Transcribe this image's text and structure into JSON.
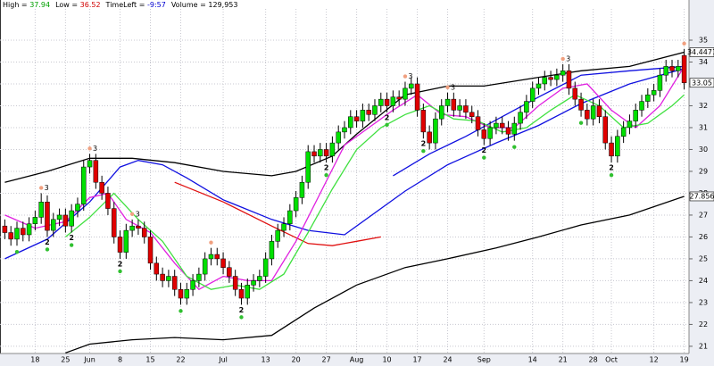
{
  "chart_data": {
    "type": "candlestick",
    "header": [
      {
        "label": "High = ",
        "value": "37.94",
        "color": "#00a000"
      },
      {
        "label": "Low = ",
        "value": "36.52",
        "color": "#d00000"
      },
      {
        "label": "TimeLeft = ",
        "value": "-9:57",
        "color": "#0000d0"
      },
      {
        "label": "Volume = ",
        "value": "129,953",
        "color": "#000000"
      }
    ],
    "categories": [
      null,
      null,
      null,
      null,
      null,
      "18",
      null,
      null,
      null,
      null,
      "25",
      null,
      null,
      null,
      "Jun",
      null,
      null,
      null,
      null,
      "8",
      null,
      null,
      null,
      null,
      "15",
      null,
      null,
      null,
      null,
      "22",
      null,
      null,
      null,
      null,
      null,
      null,
      "Jul",
      null,
      null,
      null,
      null,
      null,
      null,
      "13",
      null,
      null,
      null,
      null,
      "20",
      null,
      null,
      null,
      null,
      "27",
      null,
      null,
      null,
      null,
      "Aug",
      null,
      null,
      null,
      null,
      "10",
      null,
      null,
      null,
      null,
      "17",
      null,
      null,
      null,
      null,
      "24",
      null,
      null,
      null,
      null,
      null,
      "Sep",
      null,
      null,
      null,
      null,
      null,
      null,
      null,
      "14",
      null,
      null,
      null,
      null,
      "21",
      null,
      null,
      null,
      null,
      "28",
      null,
      null,
      "Oct",
      null,
      null,
      null,
      null,
      null,
      null,
      "12",
      null,
      null,
      null,
      null,
      "19"
    ],
    "open": [
      26.5,
      26.2,
      25.9,
      26.4,
      26.1,
      26.6,
      26.9,
      27.6,
      26.3,
      26.8,
      27.0,
      26.5,
      27.2,
      27.5,
      29.2,
      29.5,
      28.5,
      28.0,
      27.3,
      26.0,
      25.3,
      26.3,
      26.5,
      26.4,
      26.0,
      24.8,
      24.3,
      24.0,
      24.2,
      23.6,
      23.2,
      23.6,
      24.0,
      24.3,
      25.0,
      25.2,
      25.0,
      24.6,
      24.2,
      23.6,
      23.2,
      23.8,
      24.0,
      24.2,
      25.0,
      25.8,
      26.3,
      26.6,
      27.2,
      27.8,
      28.5,
      29.9,
      29.7,
      30.0,
      29.7,
      30.3,
      30.8,
      31.0,
      31.5,
      31.3,
      31.8,
      31.6,
      32.0,
      32.3,
      32.0,
      32.4,
      32.3,
      32.8,
      33.0,
      31.8,
      30.8,
      30.3,
      31.4,
      32.0,
      32.3,
      31.8,
      32.0,
      31.7,
      31.5,
      30.9,
      30.5,
      31.0,
      31.2,
      31.0,
      30.7,
      31.2,
      31.7,
      32.2,
      32.8,
      33.0,
      33.3,
      33.2,
      33.4,
      33.6,
      32.8,
      32.3,
      31.8,
      31.4,
      32.0,
      31.5,
      30.3,
      29.7,
      30.6,
      31.0,
      31.3,
      31.8,
      32.2,
      32.5,
      32.7,
      33.4,
      33.8,
      33.6,
      34.3
    ],
    "high": [
      26.8,
      26.5,
      26.7,
      26.7,
      26.9,
      27.2,
      28.0,
      27.9,
      27.1,
      27.3,
      27.3,
      27.5,
      27.8,
      29.5,
      29.8,
      29.8,
      28.8,
      28.3,
      27.6,
      26.3,
      26.6,
      26.8,
      26.8,
      26.7,
      26.3,
      25.1,
      24.6,
      24.5,
      24.5,
      23.9,
      23.9,
      24.3,
      24.6,
      25.3,
      25.5,
      25.5,
      25.3,
      24.9,
      24.5,
      23.9,
      24.1,
      24.3,
      24.5,
      25.3,
      26.1,
      26.6,
      26.9,
      27.5,
      28.1,
      28.8,
      30.2,
      30.2,
      30.3,
      30.3,
      30.6,
      31.1,
      31.3,
      31.8,
      31.8,
      32.1,
      32.1,
      32.3,
      32.6,
      32.6,
      32.7,
      32.7,
      33.1,
      33.3,
      33.3,
      32.1,
      31.1,
      31.7,
      32.3,
      32.6,
      32.6,
      32.3,
      32.3,
      32.0,
      31.8,
      31.2,
      31.3,
      31.5,
      31.5,
      31.3,
      31.5,
      32.0,
      32.5,
      33.1,
      33.3,
      33.6,
      33.6,
      33.7,
      33.9,
      33.9,
      33.1,
      32.6,
      32.1,
      32.3,
      32.3,
      31.8,
      30.6,
      30.9,
      31.3,
      31.6,
      32.1,
      32.5,
      32.8,
      33.0,
      33.7,
      34.1,
      34.1,
      34.1,
      34.6
    ],
    "low": [
      25.9,
      25.6,
      25.6,
      25.8,
      25.8,
      26.3,
      26.6,
      26.0,
      26.0,
      26.5,
      26.2,
      26.2,
      26.9,
      27.2,
      28.9,
      28.2,
      27.7,
      27.0,
      25.7,
      25.0,
      25.0,
      26.0,
      26.1,
      25.7,
      24.5,
      24.0,
      23.7,
      23.7,
      23.3,
      22.9,
      22.9,
      23.3,
      23.7,
      24.0,
      24.7,
      24.7,
      24.3,
      23.9,
      23.3,
      22.9,
      22.9,
      23.5,
      23.7,
      23.9,
      24.7,
      25.5,
      26.0,
      26.3,
      26.9,
      27.5,
      28.2,
      29.4,
      29.4,
      29.4,
      29.4,
      30.0,
      30.5,
      30.7,
      31.0,
      31.0,
      31.3,
      31.3,
      31.7,
      31.7,
      31.7,
      32.0,
      32.0,
      32.5,
      31.5,
      30.5,
      30.0,
      30.0,
      31.1,
      31.7,
      31.5,
      31.5,
      31.4,
      31.2,
      30.6,
      30.2,
      30.2,
      30.7,
      30.7,
      30.4,
      30.4,
      30.9,
      31.4,
      31.9,
      32.5,
      32.7,
      32.9,
      32.9,
      33.1,
      32.5,
      32.0,
      31.5,
      31.1,
      31.1,
      31.2,
      30.0,
      29.4,
      29.4,
      30.3,
      30.7,
      31.0,
      31.5,
      31.9,
      32.2,
      32.4,
      33.1,
      33.3,
      33.3,
      32.75
    ],
    "close": [
      26.2,
      25.9,
      26.4,
      26.1,
      26.6,
      26.9,
      27.6,
      26.3,
      26.8,
      27.0,
      26.5,
      27.2,
      27.5,
      29.2,
      29.5,
      28.5,
      28.0,
      27.3,
      26.0,
      25.3,
      26.3,
      26.5,
      26.4,
      26.0,
      24.8,
      24.3,
      24.0,
      24.2,
      23.6,
      23.2,
      23.6,
      24.0,
      24.3,
      25.0,
      25.2,
      25.0,
      24.6,
      24.2,
      23.6,
      23.2,
      23.8,
      24.0,
      24.2,
      25.0,
      25.8,
      26.3,
      26.6,
      27.2,
      27.8,
      28.5,
      29.9,
      29.7,
      30.0,
      29.7,
      30.3,
      30.8,
      31.0,
      31.5,
      31.3,
      31.8,
      31.6,
      32.0,
      32.3,
      32.0,
      32.4,
      32.3,
      32.8,
      33.0,
      31.8,
      30.8,
      30.3,
      31.4,
      32.0,
      32.3,
      31.8,
      32.0,
      31.7,
      31.5,
      30.9,
      30.5,
      31.0,
      31.2,
      31.0,
      30.7,
      31.2,
      31.7,
      32.2,
      32.8,
      33.0,
      33.3,
      33.2,
      33.4,
      33.6,
      32.8,
      32.3,
      31.8,
      31.4,
      32.0,
      31.5,
      30.3,
      29.7,
      30.6,
      31.0,
      31.3,
      31.8,
      32.2,
      32.5,
      32.7,
      33.4,
      33.8,
      33.6,
      33.8,
      33.05
    ],
    "up_color": "#00e000",
    "down_color": "#e00000",
    "lines": [
      {
        "color": "#000000",
        "x": [
          0,
          7,
          14,
          21,
          28,
          36,
          44,
          48,
          54,
          58,
          66,
          73,
          79,
          88,
          95,
          103,
          112
        ],
        "values": [
          28.5,
          29.0,
          29.6,
          29.6,
          29.4,
          29.0,
          28.8,
          29.0,
          29.7,
          30.7,
          32.5,
          32.9,
          32.9,
          33.3,
          33.6,
          33.8,
          34.45
        ]
      },
      {
        "color": "#000000",
        "x": [
          10,
          14,
          21,
          28,
          36,
          44,
          51,
          58,
          66,
          73,
          81,
          88,
          95,
          103,
          112
        ],
        "values": [
          20.7,
          21.1,
          21.3,
          21.4,
          21.3,
          21.5,
          22.75,
          23.8,
          24.6,
          25.0,
          25.5,
          26.0,
          26.55,
          27.0,
          27.856
        ]
      },
      {
        "color": "#1010e0",
        "x": [
          0,
          7,
          14,
          19,
          22,
          26,
          30,
          36,
          44,
          50,
          56,
          66,
          73,
          81,
          88,
          95,
          103,
          112
        ],
        "values": [
          25.0,
          25.9,
          27.6,
          29.2,
          29.5,
          29.3,
          28.7,
          27.7,
          26.8,
          26.3,
          26.1,
          28.1,
          29.3,
          30.3,
          31.1,
          32.1,
          33.0,
          33.7
        ]
      },
      {
        "color": "#1010e0",
        "x": [
          64,
          70,
          76,
          82,
          88,
          95,
          103,
          112
        ],
        "values": [
          28.8,
          29.8,
          30.6,
          31.5,
          32.4,
          33.4,
          33.6,
          33.8
        ]
      },
      {
        "color": "#e01010",
        "x": [
          28,
          36,
          44,
          50,
          54,
          58,
          62
        ],
        "values": [
          28.5,
          27.6,
          26.5,
          25.7,
          25.6,
          25.8,
          26.0
        ]
      },
      {
        "color": "#e020e0",
        "x": [
          0,
          5,
          10,
          14,
          17,
          20,
          24,
          28,
          32,
          36,
          40,
          44,
          48,
          52,
          56,
          60,
          64,
          68,
          72,
          76,
          80,
          84,
          88,
          92,
          96,
          100,
          104,
          108,
          112
        ],
        "values": [
          27.0,
          26.4,
          26.7,
          27.8,
          28.0,
          26.8,
          26.2,
          24.8,
          23.6,
          24.2,
          24.0,
          24.0,
          25.8,
          28.0,
          30.2,
          31.0,
          31.8,
          32.5,
          31.6,
          31.5,
          31.0,
          31.0,
          32.0,
          32.8,
          33.0,
          31.8,
          31.0,
          32.0,
          33.8
        ]
      },
      {
        "color": "#40e040",
        "x": [
          10,
          14,
          18,
          22,
          26,
          30,
          34,
          38,
          42,
          46,
          50,
          54,
          58,
          62,
          66,
          70,
          74,
          78,
          82,
          86,
          90,
          94,
          98,
          102,
          106,
          110,
          112
        ],
        "values": [
          26.0,
          26.9,
          28.0,
          26.8,
          25.8,
          24.2,
          23.6,
          23.8,
          23.6,
          24.3,
          26.2,
          28.2,
          30.0,
          31.0,
          31.6,
          32.0,
          31.4,
          31.3,
          30.8,
          31.0,
          31.8,
          32.5,
          32.0,
          31.0,
          31.2,
          32.0,
          32.5
        ]
      }
    ],
    "signals_below": [
      {
        "index": 2
      },
      {
        "index": 7,
        "label": "2"
      },
      {
        "index": 11,
        "label": "2"
      },
      {
        "index": 19,
        "label": "2"
      },
      {
        "index": 29
      },
      {
        "index": 39,
        "label": "2"
      },
      {
        "index": 53,
        "label": "2"
      },
      {
        "index": 63,
        "label": "2"
      },
      {
        "index": 69,
        "label": "2"
      },
      {
        "index": 79,
        "label": "2"
      },
      {
        "index": 84
      },
      {
        "index": 95
      },
      {
        "index": 100,
        "label": "2"
      }
    ],
    "signals_above": [
      {
        "index": 6,
        "label": "3"
      },
      {
        "index": 14,
        "label": "3"
      },
      {
        "index": 21,
        "label": "3"
      },
      {
        "index": 34
      },
      {
        "index": 66,
        "label": "3"
      },
      {
        "index": 73,
        "label": "3"
      },
      {
        "index": 92,
        "label": "3"
      },
      {
        "index": 112
      }
    ],
    "signal_below_color": "#30c030",
    "signal_above_color": "#f0a080",
    "price_tags": [
      34.4471,
      33.05,
      27.856
    ],
    "ylim": [
      20.67,
      36.51
    ],
    "yticks": [
      21,
      22,
      23,
      24,
      25,
      26,
      27,
      28,
      29,
      30,
      31,
      32,
      33,
      34,
      35
    ],
    "grid": true
  }
}
